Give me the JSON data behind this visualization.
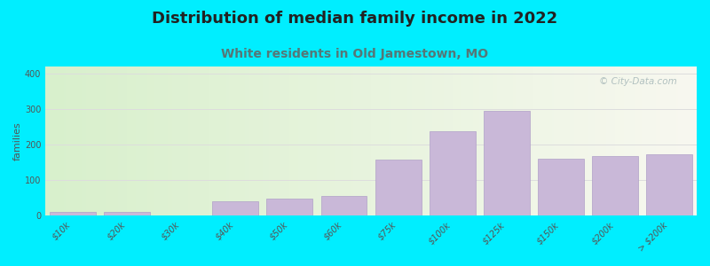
{
  "title": "Distribution of median family income in 2022",
  "subtitle": "White residents in Old Jamestown, MO",
  "ylabel": "families",
  "categories": [
    "$10k",
    "$20k",
    "$30k",
    "$40k",
    "$50k",
    "$60k",
    "$75k",
    "$100k",
    "$125k",
    "$150k",
    "$200k",
    "> $200k"
  ],
  "values": [
    10,
    12,
    0,
    40,
    48,
    55,
    158,
    237,
    295,
    160,
    168,
    172
  ],
  "bar_color": "#c9b8d8",
  "bar_edge_color": "#b0a0c8",
  "ylim": [
    0,
    420
  ],
  "yticks": [
    0,
    100,
    200,
    300,
    400
  ],
  "background_outer": "#00eeff",
  "background_inner_left": "#d8f0cc",
  "background_inner_right": "#f8f8f0",
  "grid_color": "#dddddd",
  "title_fontsize": 13,
  "subtitle_fontsize": 10,
  "subtitle_color": "#557777",
  "ylabel_fontsize": 8,
  "tick_fontsize": 7,
  "watermark_text": "© City-Data.com",
  "watermark_color": "#aabbbb"
}
